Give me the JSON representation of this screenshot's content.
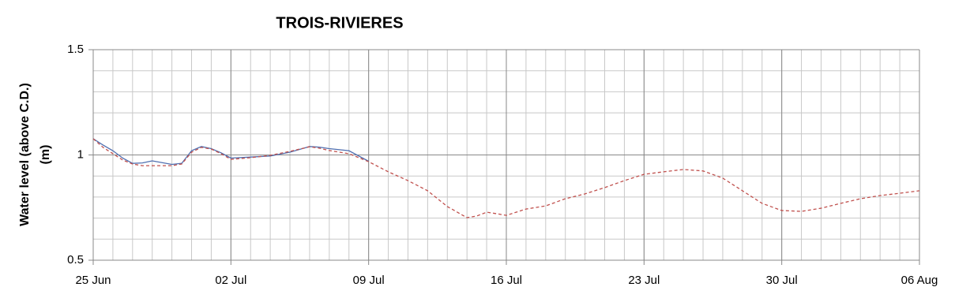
{
  "chart_data": {
    "type": "line",
    "title": "TROIS-RIVIERES",
    "ylabel": [
      "Water level (above C.D.)",
      "(m)"
    ],
    "x": [
      0,
      0.5,
      1,
      1.5,
      2,
      2.5,
      3,
      4,
      4.5,
      5,
      5.5,
      6,
      6.5,
      7,
      8,
      9,
      10,
      11,
      11.5,
      12,
      13,
      14,
      15,
      16,
      17,
      18,
      19,
      19.5,
      20,
      20.5,
      21,
      22,
      23,
      24,
      25,
      26,
      27,
      28,
      29,
      30,
      31,
      32,
      33,
      34,
      35,
      36,
      37,
      38,
      39,
      40,
      41,
      42
    ],
    "series": [
      {
        "color": "#4f6fb0",
        "dash": false,
        "values": [
          1.077,
          1.047,
          1.02,
          0.985,
          0.96,
          0.962,
          0.972,
          0.955,
          0.96,
          1.02,
          1.04,
          1.03,
          1.01,
          0.985,
          0.99,
          0.995,
          1.013,
          1.04,
          1.037,
          1.03,
          1.02,
          0.97,
          null,
          null,
          null,
          null,
          null,
          null,
          null,
          null,
          null,
          null,
          null,
          null,
          null,
          null,
          null,
          null,
          null,
          null,
          null,
          null,
          null,
          null,
          null,
          null,
          null,
          null,
          null,
          null,
          null,
          null
        ]
      },
      {
        "color": "#c0504d",
        "dash": true,
        "values": [
          1.077,
          1.036,
          1.006,
          0.976,
          0.957,
          0.949,
          0.949,
          0.949,
          0.957,
          1.013,
          1.036,
          1.028,
          1.006,
          0.979,
          0.987,
          0.998,
          1.017,
          1.039,
          1.032,
          1.021,
          1.006,
          0.968,
          0.92,
          0.878,
          0.83,
          0.755,
          0.702,
          0.71,
          0.728,
          0.721,
          0.713,
          0.743,
          0.758,
          0.792,
          0.815,
          0.845,
          0.878,
          0.908,
          0.92,
          0.931,
          0.924,
          0.89,
          0.83,
          0.77,
          0.736,
          0.732,
          0.747,
          0.77,
          0.792,
          0.807,
          0.818,
          0.83
        ]
      }
    ],
    "xlim": [
      0,
      42
    ],
    "xticks": [
      {
        "value": 0,
        "label": "25 Jun"
      },
      {
        "value": 7,
        "label": "02 Jul"
      },
      {
        "value": 14,
        "label": "09 Jul"
      },
      {
        "value": 21,
        "label": "16 Jul"
      },
      {
        "value": 28,
        "label": "23 Jul"
      },
      {
        "value": 35,
        "label": "30 Jul"
      },
      {
        "value": 42,
        "label": "06 Aug"
      }
    ],
    "ylim": [
      0.5,
      1.5
    ],
    "yticks": [
      0.5,
      1,
      1.5
    ],
    "xgrid_step": 1,
    "ygrid_step": 0.1,
    "grid": true
  }
}
